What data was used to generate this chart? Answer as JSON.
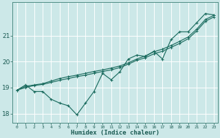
{
  "title": "",
  "xlabel": "Humidex (Indice chaleur)",
  "ylabel": "",
  "bg_color": "#cce8e8",
  "grid_color": "#ffffff",
  "line_color": "#1a6b5e",
  "xlim": [
    -0.5,
    23.5
  ],
  "ylim": [
    17.65,
    22.3
  ],
  "yticks": [
    18,
    19,
    20,
    21
  ],
  "xticks": [
    0,
    1,
    2,
    3,
    4,
    5,
    6,
    7,
    8,
    9,
    10,
    11,
    12,
    13,
    14,
    15,
    16,
    17,
    18,
    19,
    20,
    21,
    22,
    23
  ],
  "series": [
    [
      0,
      18.9
    ],
    [
      1,
      19.1
    ],
    [
      2,
      18.85
    ],
    [
      3,
      18.85
    ],
    [
      4,
      18.55
    ],
    [
      5,
      18.4
    ],
    [
      6,
      18.3
    ],
    [
      7,
      17.95
    ],
    [
      8,
      18.4
    ],
    [
      9,
      18.85
    ],
    [
      10,
      19.55
    ],
    [
      11,
      19.3
    ],
    [
      12,
      19.6
    ],
    [
      13,
      20.1
    ],
    [
      14,
      20.25
    ],
    [
      15,
      20.2
    ],
    [
      16,
      20.4
    ],
    [
      17,
      20.1
    ],
    [
      18,
      20.85
    ],
    [
      19,
      21.15
    ],
    [
      20,
      21.15
    ],
    [
      21,
      21.5
    ],
    [
      22,
      21.85
    ],
    [
      23,
      21.8
    ]
  ],
  "series2": [
    [
      0,
      18.9
    ],
    [
      1,
      19.05
    ],
    [
      2,
      19.1
    ],
    [
      3,
      19.15
    ],
    [
      4,
      19.25
    ],
    [
      5,
      19.35
    ],
    [
      6,
      19.42
    ],
    [
      7,
      19.48
    ],
    [
      8,
      19.55
    ],
    [
      9,
      19.62
    ],
    [
      10,
      19.68
    ],
    [
      11,
      19.75
    ],
    [
      12,
      19.83
    ],
    [
      13,
      19.95
    ],
    [
      14,
      20.1
    ],
    [
      15,
      20.22
    ],
    [
      16,
      20.38
    ],
    [
      17,
      20.48
    ],
    [
      18,
      20.62
    ],
    [
      19,
      20.78
    ],
    [
      20,
      20.95
    ],
    [
      21,
      21.25
    ],
    [
      22,
      21.62
    ],
    [
      23,
      21.78
    ]
  ],
  "series3": [
    [
      0,
      18.9
    ],
    [
      1,
      19.0
    ],
    [
      2,
      19.08
    ],
    [
      3,
      19.12
    ],
    [
      4,
      19.2
    ],
    [
      5,
      19.28
    ],
    [
      6,
      19.35
    ],
    [
      7,
      19.42
    ],
    [
      8,
      19.48
    ],
    [
      9,
      19.55
    ],
    [
      10,
      19.62
    ],
    [
      11,
      19.68
    ],
    [
      12,
      19.77
    ],
    [
      13,
      19.9
    ],
    [
      14,
      20.05
    ],
    [
      15,
      20.15
    ],
    [
      16,
      20.3
    ],
    [
      17,
      20.4
    ],
    [
      18,
      20.55
    ],
    [
      19,
      20.7
    ],
    [
      20,
      20.88
    ],
    [
      21,
      21.18
    ],
    [
      22,
      21.55
    ],
    [
      23,
      21.72
    ]
  ]
}
